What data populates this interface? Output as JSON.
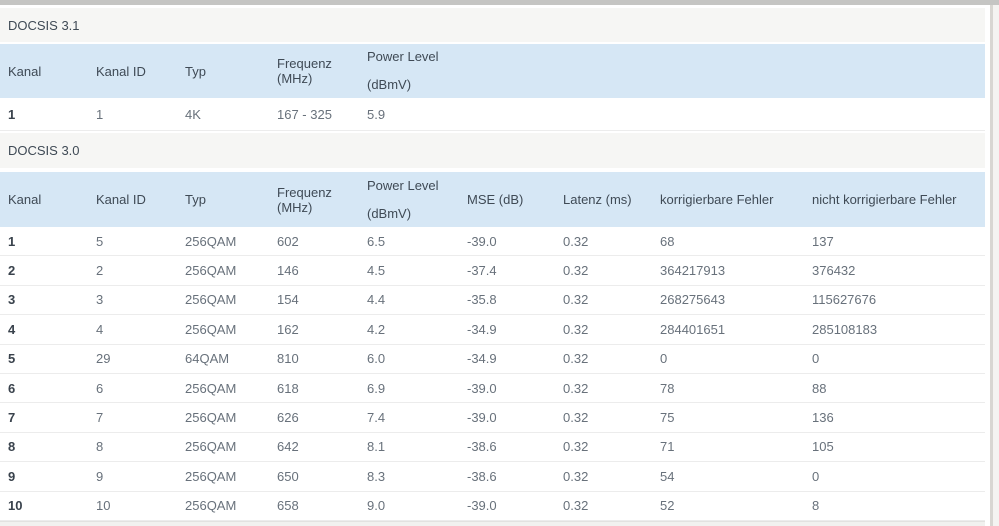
{
  "colors": {
    "table_header_bg": "#d6e7f5",
    "section_title_bg": "#f6f6f4",
    "row_bg": "#ffffff",
    "row_border": "#ececec",
    "text_primary": "#3f4a55",
    "text_secondary": "#68717b",
    "top_edge": "#c5c5c3"
  },
  "docsis31": {
    "title": "DOCSIS 3.1",
    "headers": {
      "kanal": "Kanal",
      "kanal_id": "Kanal ID",
      "typ": "Typ",
      "frequenz": "Frequenz (MHz)",
      "power_line1": "Power Level",
      "power_line2": "(dBmV)"
    },
    "rows": [
      {
        "kanal": "1",
        "kanal_id": "1",
        "typ": "4K",
        "frequenz": "167 - 325",
        "power": "5.9"
      }
    ]
  },
  "docsis30": {
    "title": "DOCSIS 3.0",
    "headers": {
      "kanal": "Kanal",
      "kanal_id": "Kanal ID",
      "typ": "Typ",
      "frequenz": "Frequenz (MHz)",
      "power_line1": "Power Level",
      "power_line2": "(dBmV)",
      "mse": "MSE (dB)",
      "latenz": "Latenz (ms)",
      "korr": "korrigierbare Fehler",
      "nkorr": "nicht korrigierbare Fehler"
    },
    "rows": [
      {
        "kanal": "1",
        "kanal_id": "5",
        "typ": "256QAM",
        "frequenz": "602",
        "power": "6.5",
        "mse": "-39.0",
        "latenz": "0.32",
        "korr": "68",
        "nkorr": "137"
      },
      {
        "kanal": "2",
        "kanal_id": "2",
        "typ": "256QAM",
        "frequenz": "146",
        "power": "4.5",
        "mse": "-37.4",
        "latenz": "0.32",
        "korr": "364217913",
        "nkorr": "376432"
      },
      {
        "kanal": "3",
        "kanal_id": "3",
        "typ": "256QAM",
        "frequenz": "154",
        "power": "4.4",
        "mse": "-35.8",
        "latenz": "0.32",
        "korr": "268275643",
        "nkorr": "115627676"
      },
      {
        "kanal": "4",
        "kanal_id": "4",
        "typ": "256QAM",
        "frequenz": "162",
        "power": "4.2",
        "mse": "-34.9",
        "latenz": "0.32",
        "korr": "284401651",
        "nkorr": "285108183"
      },
      {
        "kanal": "5",
        "kanal_id": "29",
        "typ": "64QAM",
        "frequenz": "810",
        "power": "6.0",
        "mse": "-34.9",
        "latenz": "0.32",
        "korr": "0",
        "nkorr": "0"
      },
      {
        "kanal": "6",
        "kanal_id": "6",
        "typ": "256QAM",
        "frequenz": "618",
        "power": "6.9",
        "mse": "-39.0",
        "latenz": "0.32",
        "korr": "78",
        "nkorr": "88"
      },
      {
        "kanal": "7",
        "kanal_id": "7",
        "typ": "256QAM",
        "frequenz": "626",
        "power": "7.4",
        "mse": "-39.0",
        "latenz": "0.32",
        "korr": "75",
        "nkorr": "136"
      },
      {
        "kanal": "8",
        "kanal_id": "8",
        "typ": "256QAM",
        "frequenz": "642",
        "power": "8.1",
        "mse": "-38.6",
        "latenz": "0.32",
        "korr": "71",
        "nkorr": "105"
      },
      {
        "kanal": "9",
        "kanal_id": "9",
        "typ": "256QAM",
        "frequenz": "650",
        "power": "8.3",
        "mse": "-38.6",
        "latenz": "0.32",
        "korr": "54",
        "nkorr": "0"
      },
      {
        "kanal": "10",
        "kanal_id": "10",
        "typ": "256QAM",
        "frequenz": "658",
        "power": "9.0",
        "mse": "-39.0",
        "latenz": "0.32",
        "korr": "52",
        "nkorr": "8"
      }
    ]
  }
}
